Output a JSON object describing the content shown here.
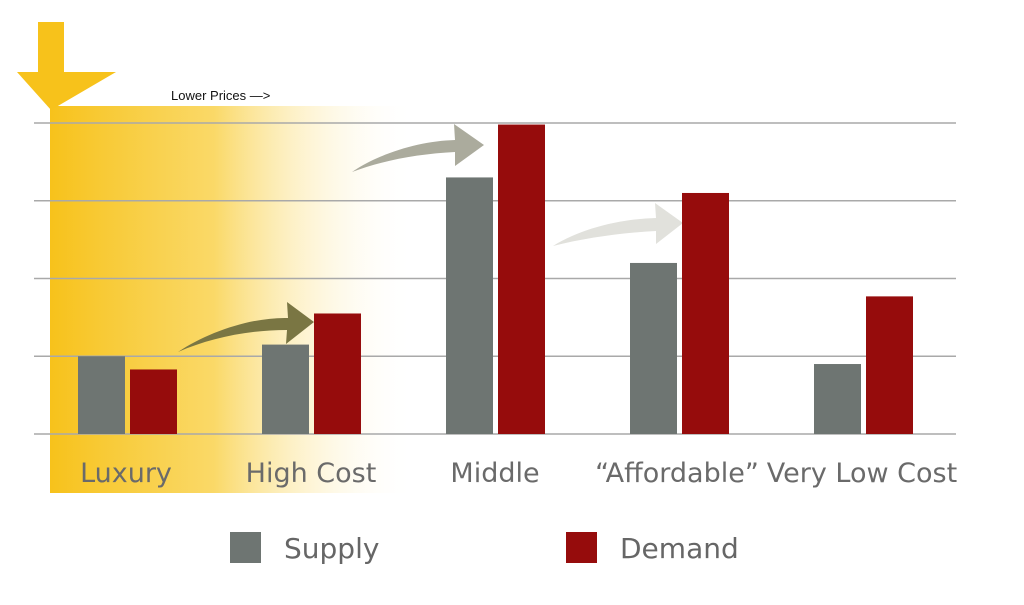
{
  "chart_data": {
    "type": "bar",
    "categories": [
      "Luxury",
      "High Cost",
      "Middle",
      "“Affordable”",
      "Very Low Cost"
    ],
    "series": [
      {
        "name": "Supply",
        "values": [
          1.0,
          1.15,
          3.3,
          2.2,
          0.9
        ]
      },
      {
        "name": "Demand",
        "values": [
          0.83,
          1.55,
          3.98,
          3.1,
          1.77
        ]
      }
    ],
    "ylim": [
      0,
      4
    ],
    "grid": true,
    "legend_position": "bottom",
    "annotations": {
      "top_label": "Lower Prices —>",
      "shaded_categories": [
        "Luxury",
        "High Cost"
      ],
      "shift_arrows": [
        {
          "from": "Luxury",
          "to": "High Cost"
        },
        {
          "from": "High Cost",
          "to": "Middle"
        },
        {
          "from": "Middle",
          "to": "“Affordable”"
        }
      ]
    },
    "colors": {
      "Supply": "#6e7572",
      "Demand": "#960c0c",
      "highlight": "#f7c21b",
      "gridline": "#a9a9a9",
      "arrow_dark": "#7a7643",
      "arrow_mid": "#abab9d",
      "arrow_light": "#e1e1dc"
    }
  }
}
